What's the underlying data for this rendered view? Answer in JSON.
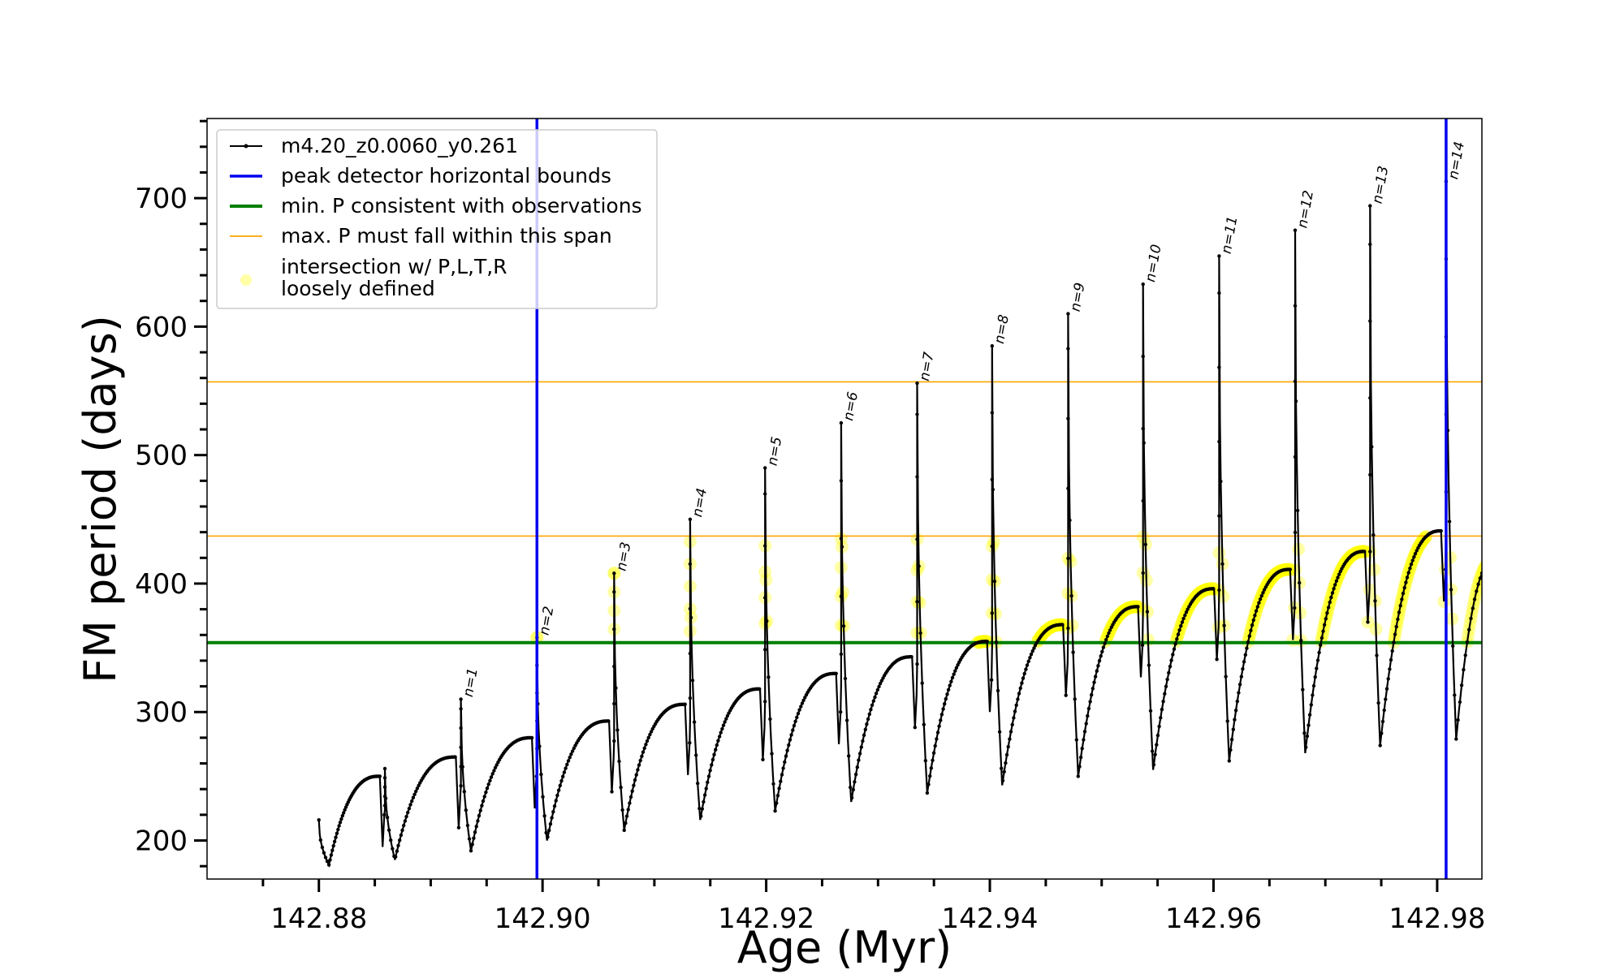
{
  "chart_data": {
    "type": "line",
    "xlabel": "Age (Myr)",
    "ylabel": "FM period (days)",
    "xlim": [
      142.87,
      142.984
    ],
    "ylim": [
      170,
      762
    ],
    "xticks": [
      {
        "value": 142.88,
        "label": "142.88"
      },
      {
        "value": 142.9,
        "label": "142.90"
      },
      {
        "value": 142.92,
        "label": "142.92"
      },
      {
        "value": 142.94,
        "label": "142.94"
      },
      {
        "value": 142.96,
        "label": "142.96"
      },
      {
        "value": 142.98,
        "label": "142.98"
      }
    ],
    "yticks": [
      {
        "value": 200,
        "label": "200"
      },
      {
        "value": 300,
        "label": "300"
      },
      {
        "value": 400,
        "label": "400"
      },
      {
        "value": 500,
        "label": "500"
      },
      {
        "value": 600,
        "label": "600"
      },
      {
        "value": 700,
        "label": "700"
      }
    ],
    "grid": false,
    "legend_position": "top-left",
    "legend": [
      {
        "label": "m4.20_z0.0060_y0.261",
        "style": "line-dot",
        "color": "#000000"
      },
      {
        "label": "peak detector horizontal bounds",
        "style": "line",
        "color": "#0000ee"
      },
      {
        "label": "min. P consistent with observations",
        "style": "line",
        "color": "#008000"
      },
      {
        "label": "max. P must fall within this span",
        "style": "line",
        "color": "#ffa500"
      },
      {
        "label_lines": [
          "intersection w/ P,L,T,R",
          "loosely defined"
        ],
        "style": "marker",
        "color": "#ffff00"
      }
    ],
    "series": [
      {
        "name": "m4.20_z0.0060_y0.261",
        "color": "#000000",
        "cycles": [
          {
            "start": 142.88,
            "peak": 142.8859,
            "pmin": 181,
            "pend": 250,
            "pmax": 256
          },
          {
            "start": 142.8859,
            "peak": 142.8927,
            "pmin": 185,
            "pend": 265,
            "pmax": 310
          },
          {
            "start": 142.8927,
            "peak": 142.8995,
            "pmin": 192,
            "pend": 280,
            "pmax": 358
          },
          {
            "start": 142.8995,
            "peak": 142.9064,
            "pmin": 200,
            "pend": 293,
            "pmax": 408
          },
          {
            "start": 142.9064,
            "peak": 142.9132,
            "pmin": 208,
            "pend": 306,
            "pmax": 450
          },
          {
            "start": 142.9132,
            "peak": 142.9199,
            "pmin": 216,
            "pend": 318,
            "pmax": 490
          },
          {
            "start": 142.9199,
            "peak": 142.9267,
            "pmin": 223,
            "pend": 330,
            "pmax": 525
          },
          {
            "start": 142.9267,
            "peak": 142.9335,
            "pmin": 230,
            "pend": 343,
            "pmax": 556
          },
          {
            "start": 142.9335,
            "peak": 142.9402,
            "pmin": 237,
            "pend": 355,
            "pmax": 585
          },
          {
            "start": 142.9402,
            "peak": 142.947,
            "pmin": 243,
            "pend": 368,
            "pmax": 610
          },
          {
            "start": 142.947,
            "peak": 142.9537,
            "pmin": 250,
            "pend": 382,
            "pmax": 633
          },
          {
            "start": 142.9537,
            "peak": 142.9605,
            "pmin": 255,
            "pend": 396,
            "pmax": 655
          },
          {
            "start": 142.9605,
            "peak": 142.9673,
            "pmin": 262,
            "pend": 411,
            "pmax": 675
          },
          {
            "start": 142.9673,
            "peak": 142.974,
            "pmin": 268,
            "pend": 425,
            "pmax": 694
          },
          {
            "start": 142.974,
            "peak": 142.9808,
            "pmin": 274,
            "pend": 441,
            "pmax": 713
          }
        ],
        "final_segment": {
          "start": 142.9808,
          "end": 142.985,
          "pmin": 279,
          "pend": 418
        }
      }
    ],
    "peak_labels": [
      {
        "label": "n=1",
        "x": 142.8927,
        "y": 310
      },
      {
        "label": "n=2",
        "x": 142.8995,
        "y": 358
      },
      {
        "label": "n=3",
        "x": 142.9064,
        "y": 408
      },
      {
        "label": "n=4",
        "x": 142.9132,
        "y": 450
      },
      {
        "label": "n=5",
        "x": 142.9199,
        "y": 490
      },
      {
        "label": "n=6",
        "x": 142.9267,
        "y": 525
      },
      {
        "label": "n=7",
        "x": 142.9335,
        "y": 556
      },
      {
        "label": "n=8",
        "x": 142.9402,
        "y": 585
      },
      {
        "label": "n=9",
        "x": 142.947,
        "y": 610
      },
      {
        "label": "n=10",
        "x": 142.9537,
        "y": 633
      },
      {
        "label": "n=11",
        "x": 142.9605,
        "y": 655
      },
      {
        "label": "n=12",
        "x": 142.9673,
        "y": 675
      },
      {
        "label": "n=13",
        "x": 142.974,
        "y": 694
      },
      {
        "label": "n=14",
        "x": 142.9808,
        "y": 713
      }
    ],
    "vertical_lines": [
      {
        "x": 142.8995,
        "color": "#0000ee"
      },
      {
        "x": 142.9808,
        "color": "#0000ee"
      }
    ],
    "horizontal_lines": [
      {
        "y": 354,
        "color": "#008000",
        "role": "min"
      },
      {
        "y": 437,
        "color": "#ffa500",
        "role": "max-span-low"
      },
      {
        "y": 557,
        "color": "#ffa500",
        "role": "max-span-high"
      }
    ],
    "intersection_band": {
      "ymin": 354,
      "ymax": 437,
      "color": "#ffff00"
    }
  }
}
